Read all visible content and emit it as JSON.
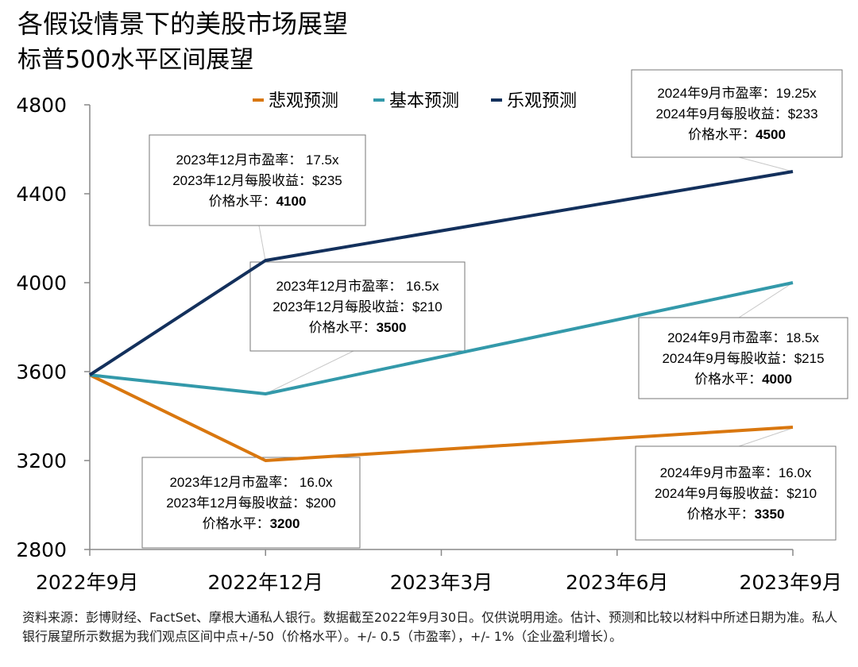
{
  "header": {
    "title": "各假设情景下的美股市场展望",
    "subtitle": "标普500水平区间展望"
  },
  "chart_data": {
    "type": "line",
    "x": [
      "2022年9月",
      "2022年12月",
      "2023年3月",
      "2023年6月",
      "2023年9月"
    ],
    "yticks": [
      2800,
      3200,
      3600,
      4000,
      4400,
      4800
    ],
    "ylim": [
      2800,
      4800
    ],
    "grid": false,
    "legend_position": "top",
    "series": [
      {
        "name": "悲观预测",
        "color": "#d9770f",
        "points": [
          [
            "2022年9月",
            3585
          ],
          [
            "2022年12月",
            3200
          ],
          [
            "2023年9月",
            3350
          ]
        ]
      },
      {
        "name": "基本预测",
        "color": "#3399aa",
        "points": [
          [
            "2022年9月",
            3585
          ],
          [
            "2022年12月",
            3500
          ],
          [
            "2023年9月",
            4000
          ]
        ]
      },
      {
        "name": "乐观预测",
        "color": "#13305c",
        "points": [
          [
            "2022年9月",
            3585
          ],
          [
            "2022年12月",
            4100
          ],
          [
            "2023年9月",
            4500
          ]
        ]
      }
    ],
    "annotations": [
      {
        "series": "乐观预测",
        "x": "2022年12月",
        "y": 4100,
        "lines": [
          "2023年12月市盈率： 17.5x",
          "2023年12月每股收益：$235"
        ],
        "price_label": "价格水平：",
        "price": "4100"
      },
      {
        "series": "基本预测",
        "x": "2022年12月",
        "y": 3500,
        "lines": [
          "2023年12月市盈率： 16.5x",
          "2023年12月每股收益：$210"
        ],
        "price_label": "价格水平：",
        "price": "3500"
      },
      {
        "series": "悲观预测",
        "x": "2022年12月",
        "y": 3200,
        "lines": [
          "2023年12月市盈率： 16.0x",
          "2023年12月每股收益：$200"
        ],
        "price_label": "价格水平：",
        "price": "3200"
      },
      {
        "series": "乐观预测",
        "x": "2023年9月",
        "y": 4500,
        "lines": [
          "2024年9月市盈率：19.25x",
          "2024年9月每股收益：$233"
        ],
        "price_label": "价格水平：",
        "price": "4500"
      },
      {
        "series": "基本预测",
        "x": "2023年9月",
        "y": 4000,
        "lines": [
          "2024年9月市盈率：18.5x",
          "2024年9月每股收益：$215"
        ],
        "price_label": "价格水平：",
        "price": "4000"
      },
      {
        "series": "悲观预测",
        "x": "2023年9月",
        "y": 3350,
        "lines": [
          "2024年9月市盈率：16.0x",
          "2024年9月每股收益：$210"
        ],
        "price_label": "价格水平：",
        "price": "3350"
      }
    ]
  },
  "footnote": "资料来源：彭博财经、FactSet、摩根大通私人银行。数据截至2022年9月30日。仅供说明用途。估计、预测和比较以材料中所述日期为准。私人银行展望所示数据为我们观点区间中点+/-50（价格水平）。+/- 0.5（市盈率），+/- 1%（企业盈利增长）。"
}
